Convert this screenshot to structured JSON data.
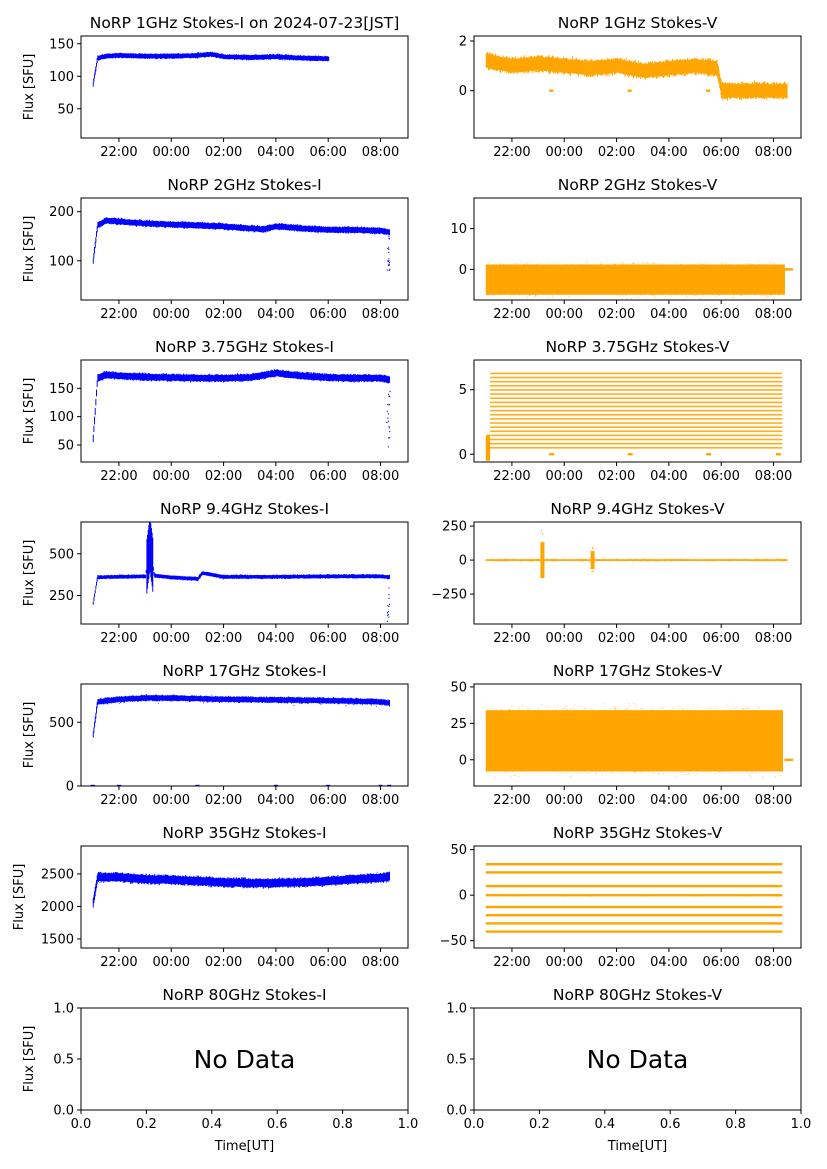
{
  "figure": {
    "title_prefix": "NoRP 1GHz Stokes-I on 2024-07-23[JST]"
  },
  "colors": {
    "stokes_i": "#0000ff",
    "stokes_v": "#ffa500",
    "axes": "#000000"
  },
  "time_ticks": [
    "22:00",
    "00:00",
    "02:00",
    "04:00",
    "06:00",
    "08:00"
  ],
  "chart_data": [
    {
      "type": "scatter",
      "title": "NoRP 1GHz Stokes-I on 2024-07-23[JST]",
      "ylabel": "Flux [SFU]",
      "xlabel": "",
      "x_range": [
        "21:00",
        "08:30"
      ],
      "ylim": [
        5,
        162
      ],
      "yticks": [
        50,
        100,
        150
      ],
      "series": [
        {
          "color": "#0000ff",
          "x": [
            "21:00",
            "21:10",
            "21:30",
            "22:00",
            "23:00",
            "00:00",
            "01:00",
            "01:30",
            "02:00",
            "03:00",
            "04:00",
            "05:00",
            "06:00"
          ],
          "y": [
            88,
            128,
            131,
            132,
            131,
            131,
            132,
            134,
            130,
            129,
            130,
            128,
            127
          ]
        }
      ]
    },
    {
      "type": "scatter",
      "title": "NoRP 1GHz Stokes-V",
      "ylabel": "",
      "xlabel": "",
      "x_range": [
        "21:00",
        "08:30"
      ],
      "ylim": [
        -1.9,
        2.2
      ],
      "yticks": [
        0,
        2
      ],
      "series": [
        {
          "color": "#ffa500",
          "x": [
            "21:00",
            "22:00",
            "23:00",
            "00:00",
            "01:00",
            "02:00",
            "03:00",
            "04:00",
            "05:00",
            "05:50",
            "06:00",
            "07:00",
            "08:30"
          ],
          "y": [
            1.2,
            1.0,
            1.1,
            1.0,
            0.9,
            1.0,
            0.8,
            0.9,
            1.0,
            0.9,
            0,
            0,
            0
          ]
        }
      ]
    },
    {
      "type": "scatter",
      "title": "NoRP 2GHz Stokes-I",
      "ylabel": "Flux [SFU]",
      "xlabel": "",
      "x_range": [
        "21:00",
        "08:30"
      ],
      "ylim": [
        20,
        228
      ],
      "yticks": [
        100,
        200
      ],
      "series": [
        {
          "color": "#0000ff",
          "x": [
            "21:00",
            "21:10",
            "21:30",
            "22:00",
            "23:00",
            "00:00",
            "01:00",
            "02:00",
            "03:00",
            "03:30",
            "04:00",
            "05:00",
            "06:00",
            "07:00",
            "08:00",
            "08:20"
          ],
          "y": [
            100,
            172,
            182,
            180,
            176,
            174,
            172,
            170,
            166,
            164,
            170,
            166,
            163,
            163,
            161,
            158
          ]
        }
      ]
    },
    {
      "type": "scatter",
      "title": "NoRP 2GHz Stokes-V",
      "ylabel": "",
      "xlabel": "",
      "x_range": [
        "21:00",
        "08:30"
      ],
      "ylim": [
        -7.5,
        17.5
      ],
      "yticks": [
        0,
        10
      ],
      "series": [
        {
          "color": "#ffa500",
          "x": [
            "21:00",
            "22:00",
            "00:00",
            "02:00",
            "04:00",
            "06:00",
            "08:20"
          ],
          "y": [
            -3,
            -3,
            -3,
            -3,
            -3,
            -3,
            -3
          ]
        }
      ]
    },
    {
      "type": "scatter",
      "title": "NoRP 3.75GHz Stokes-I",
      "ylabel": "Flux [SFU]",
      "xlabel": "",
      "x_range": [
        "21:00",
        "08:30"
      ],
      "ylim": [
        20,
        200
      ],
      "yticks": [
        50,
        100,
        150
      ],
      "series": [
        {
          "color": "#0000ff",
          "x": [
            "21:00",
            "21:10",
            "21:30",
            "22:00",
            "23:00",
            "00:00",
            "01:00",
            "02:00",
            "03:00",
            "04:00",
            "04:30",
            "05:00",
            "06:00",
            "07:00",
            "08:00",
            "08:20"
          ],
          "y": [
            62,
            168,
            174,
            172,
            170,
            169,
            168,
            168,
            169,
            177,
            174,
            172,
            169,
            168,
            168,
            165
          ]
        }
      ]
    },
    {
      "type": "scatter",
      "title": "NoRP 3.75GHz Stokes-V",
      "ylabel": "",
      "xlabel": "",
      "x_range": [
        "21:00",
        "08:30"
      ],
      "ylim": [
        -0.6,
        7.3
      ],
      "yticks": [
        0,
        5
      ],
      "series": [
        {
          "color": "#ffa500",
          "x": [
            "21:00",
            "22:00",
            "00:00",
            "02:00",
            "04:00",
            "06:00",
            "08:20"
          ],
          "y": [
            3.5,
            3.5,
            3.5,
            3.5,
            3.5,
            3.5,
            3.5
          ]
        }
      ]
    },
    {
      "type": "scatter",
      "title": "NoRP 9.4GHz Stokes-I",
      "ylabel": "Flux [SFU]",
      "xlabel": "",
      "x_range": [
        "21:00",
        "08:30"
      ],
      "ylim": [
        80,
        690
      ],
      "yticks": [
        250,
        500
      ],
      "series": [
        {
          "color": "#0000ff",
          "x": [
            "21:00",
            "21:10",
            "22:00",
            "23:00",
            "23:10",
            "23:20",
            "00:00",
            "01:00",
            "01:10",
            "02:00",
            "04:00",
            "06:00",
            "08:00",
            "08:20"
          ],
          "y": [
            205,
            360,
            362,
            365,
            560,
            370,
            358,
            350,
            385,
            362,
            362,
            365,
            365,
            360
          ]
        }
      ]
    },
    {
      "type": "scatter",
      "title": "NoRP 9.4GHz Stokes-V",
      "ylabel": "",
      "xlabel": "",
      "x_range": [
        "21:00",
        "08:30"
      ],
      "ylim": [
        -470,
        280
      ],
      "yticks": [
        -250,
        0,
        250
      ],
      "series": [
        {
          "color": "#ffa500",
          "x": [
            "21:00",
            "23:00",
            "23:10",
            "23:20",
            "01:00",
            "01:10",
            "01:20",
            "08:30"
          ],
          "y": [
            0,
            0,
            120,
            0,
            0,
            -90,
            0,
            0
          ]
        }
      ]
    },
    {
      "type": "scatter",
      "title": "NoRP 17GHz Stokes-I",
      "ylabel": "Flux [SFU]",
      "xlabel": "",
      "x_range": [
        "21:00",
        "08:30"
      ],
      "ylim": [
        0,
        800
      ],
      "yticks": [
        0,
        500
      ],
      "series": [
        {
          "color": "#0000ff",
          "x": [
            "21:00",
            "21:10",
            "22:00",
            "23:00",
            "00:00",
            "01:00",
            "02:00",
            "04:00",
            "06:00",
            "08:00",
            "08:20"
          ],
          "y": [
            400,
            660,
            680,
            690,
            690,
            685,
            680,
            675,
            670,
            660,
            650
          ]
        }
      ]
    },
    {
      "type": "scatter",
      "title": "NoRP 17GHz Stokes-V",
      "ylabel": "",
      "xlabel": "",
      "x_range": [
        "21:00",
        "08:30"
      ],
      "ylim": [
        -18,
        52
      ],
      "yticks": [
        0,
        25,
        50
      ],
      "series": [
        {
          "color": "#ffa500",
          "x": [
            "21:00",
            "22:00",
            "00:00",
            "02:00",
            "04:00",
            "06:00",
            "08:20"
          ],
          "y": [
            13,
            13,
            13,
            13,
            13,
            13,
            13
          ]
        }
      ]
    },
    {
      "type": "scatter",
      "title": "NoRP 35GHz Stokes-I",
      "ylabel": "Flux [SFU]",
      "xlabel": "",
      "x_range": [
        "21:00",
        "08:30"
      ],
      "ylim": [
        1360,
        2930
      ],
      "yticks": [
        1500,
        2000,
        2500
      ],
      "series": [
        {
          "color": "#0000ff",
          "x": [
            "21:00",
            "21:10",
            "22:00",
            "23:00",
            "00:00",
            "01:00",
            "02:00",
            "03:00",
            "04:00",
            "05:00",
            "06:00",
            "07:00",
            "08:00",
            "08:20"
          ],
          "y": [
            2050,
            2450,
            2450,
            2420,
            2410,
            2390,
            2370,
            2360,
            2360,
            2370,
            2390,
            2420,
            2440,
            2460
          ]
        }
      ]
    },
    {
      "type": "scatter",
      "title": "NoRP 35GHz Stokes-V",
      "ylabel": "",
      "xlabel": "",
      "x_range": [
        "21:00",
        "08:30"
      ],
      "ylim": [
        -58,
        54
      ],
      "yticks": [
        -50,
        0,
        50
      ],
      "series": [
        {
          "color": "#ffa500",
          "x": [
            "21:00",
            "22:00",
            "00:00",
            "02:00",
            "04:00",
            "06:00",
            "08:20"
          ],
          "y": [
            0,
            0,
            0,
            0,
            0,
            0,
            0
          ]
        }
      ]
    },
    {
      "type": "scatter",
      "title": "NoRP 80GHz Stokes-I",
      "ylabel": "Flux [SFU]",
      "xlabel": "Time[UT]",
      "xlim": [
        0,
        1
      ],
      "ylim": [
        0,
        1
      ],
      "annotation": "No Data",
      "xticks": [
        "0.0",
        "0.2",
        "0.4",
        "0.6",
        "0.8",
        "1.0"
      ],
      "yticks": [
        "0.0",
        "0.5",
        "1.0"
      ],
      "series": []
    },
    {
      "type": "scatter",
      "title": "NoRP 80GHz Stokes-V",
      "ylabel": "",
      "xlabel": "Time[UT]",
      "xlim": [
        0,
        1
      ],
      "ylim": [
        0,
        1
      ],
      "annotation": "No Data",
      "xticks": [
        "0.0",
        "0.2",
        "0.4",
        "0.6",
        "0.8",
        "1.0"
      ],
      "yticks": [
        "0.0",
        "0.5",
        "1.0"
      ],
      "series": []
    }
  ]
}
